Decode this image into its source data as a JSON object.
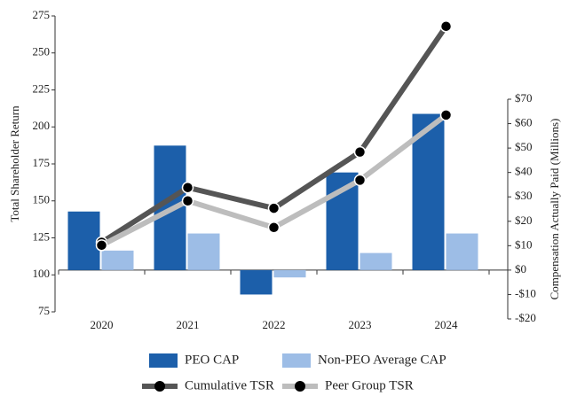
{
  "chart_data": {
    "type": "bar",
    "y_label": "Total Shareholder Return",
    "y2_label": "Compensation Actually Paid (Millions)",
    "categories": [
      "2020",
      "2021",
      "2022",
      "2023",
      "2024"
    ],
    "ylim": [
      75,
      275
    ],
    "yticks": [
      75,
      100,
      125,
      150,
      175,
      200,
      225,
      250,
      275
    ],
    "y2lim": [
      -20,
      70
    ],
    "y2ticks": [
      {
        "value": -20,
        "label": "-$20"
      },
      {
        "value": -10,
        "label": "-$10"
      },
      {
        "value": 0,
        "label": "$0"
      },
      {
        "value": 10,
        "label": "$10"
      },
      {
        "value": 20,
        "label": "$20"
      },
      {
        "value": 30,
        "label": "$30"
      },
      {
        "value": 40,
        "label": "$40"
      },
      {
        "value": 50,
        "label": "$50"
      },
      {
        "value": 60,
        "label": "$60"
      },
      {
        "value": 70,
        "label": "$70"
      }
    ],
    "series": [
      {
        "name": "PEO CAP",
        "type": "bar",
        "axis": "y2",
        "color": "#1c5faa",
        "values": [
          24,
          51,
          -10,
          40,
          64
        ]
      },
      {
        "name": "Non-PEO Average CAP",
        "type": "bar",
        "axis": "y2",
        "color": "#9dbde6",
        "values": [
          8,
          15,
          -3,
          7,
          15
        ]
      },
      {
        "name": "Cumulative TSR",
        "type": "line",
        "color": "#555555",
        "values": [
          122,
          159,
          145,
          183,
          268
        ]
      },
      {
        "name": "Peer Group TSR",
        "type": "line",
        "color": "#bdbdbd",
        "values": [
          120,
          150,
          132,
          164,
          208
        ]
      }
    ]
  }
}
